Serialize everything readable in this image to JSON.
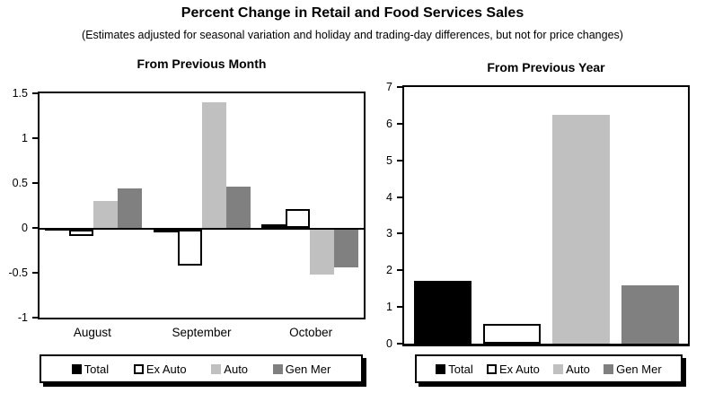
{
  "page": {
    "title": "Percent Change in Retail and Food Services Sales",
    "subtitle": "(Estimates adjusted for seasonal variation and holiday and trading-day differences, but not for price changes)"
  },
  "colors": {
    "total": "#000000",
    "ex_auto": "#ffffff",
    "auto": "#c0c0c0",
    "gen_mer": "#808080",
    "axis": "#000000",
    "background": "#ffffff"
  },
  "chart_data": [
    {
      "type": "bar",
      "title": "From Previous Month",
      "categories": [
        "August",
        "September",
        "October"
      ],
      "series": [
        {
          "name": "Total",
          "color": "#000000",
          "outlined": false,
          "values": [
            -0.01,
            -0.03,
            0.04
          ]
        },
        {
          "name": "Ex Auto",
          "color": "#ffffff",
          "outlined": true,
          "values": [
            -0.07,
            -0.4,
            0.21
          ]
        },
        {
          "name": "Auto",
          "color": "#c0c0c0",
          "outlined": false,
          "values": [
            0.3,
            1.4,
            -0.5
          ]
        },
        {
          "name": "Gen Mer",
          "color": "#808080",
          "outlined": false,
          "values": [
            0.44,
            0.46,
            -0.42
          ]
        }
      ],
      "ylim": [
        -1,
        1.5
      ],
      "yticks": [
        1.5,
        1,
        0.5,
        0,
        -0.5,
        -1
      ],
      "ytick_labels": [
        "1.5",
        "1",
        "0.5",
        "0",
        "-0.5",
        "-1"
      ],
      "grid": false,
      "legend": [
        "Total",
        "Ex Auto",
        "Auto",
        "Gen Mer"
      ],
      "legend_position": "bottom"
    },
    {
      "type": "bar",
      "title": "From Previous Year",
      "categories": [
        ""
      ],
      "series": [
        {
          "name": "Total",
          "color": "#000000",
          "outlined": false,
          "values": [
            1.72
          ]
        },
        {
          "name": "Ex Auto",
          "color": "#ffffff",
          "outlined": true,
          "values": [
            0.55
          ]
        },
        {
          "name": "Auto",
          "color": "#c0c0c0",
          "outlined": false,
          "values": [
            6.25
          ]
        },
        {
          "name": "Gen Mer",
          "color": "#808080",
          "outlined": false,
          "values": [
            1.58
          ]
        }
      ],
      "ylim": [
        0,
        7
      ],
      "yticks": [
        7,
        6,
        5,
        4,
        3,
        2,
        1,
        0
      ],
      "ytick_labels": [
        "7",
        "6",
        "5",
        "4",
        "3",
        "2",
        "1",
        "0"
      ],
      "grid": false,
      "legend": [
        "Total",
        "Ex Auto",
        "Auto",
        "Gen Mer"
      ],
      "legend_position": "bottom"
    }
  ]
}
